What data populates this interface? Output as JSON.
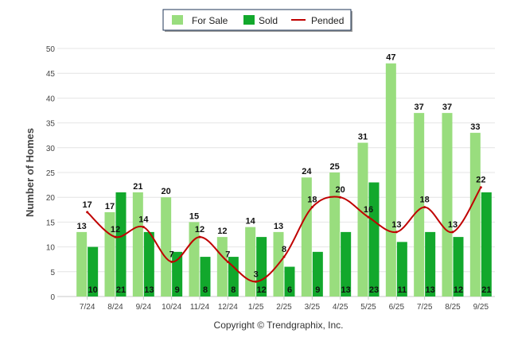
{
  "chart_data": {
    "type": "bar",
    "title": "",
    "xlabel": "",
    "ylabel": "Number of Homes",
    "ylim": [
      0,
      50
    ],
    "yticks": [
      0,
      5,
      10,
      15,
      20,
      25,
      30,
      35,
      40,
      45,
      50
    ],
    "grid": true,
    "legend_position": "top-center",
    "categories": [
      "7/24",
      "8/24",
      "9/24",
      "10/24",
      "11/24",
      "12/24",
      "1/25",
      "2/25",
      "3/25",
      "4/25",
      "5/25",
      "6/25",
      "7/25",
      "8/25",
      "9/25"
    ],
    "series": [
      {
        "name": "For Sale",
        "kind": "bar",
        "color": "#99dd7e",
        "values": [
          13,
          17,
          21,
          20,
          15,
          12,
          14,
          13,
          24,
          25,
          31,
          47,
          37,
          37,
          33
        ]
      },
      {
        "name": "Sold",
        "kind": "bar",
        "color": "#12a82c",
        "values": [
          10,
          21,
          13,
          9,
          8,
          8,
          12,
          6,
          9,
          13,
          23,
          11,
          13,
          12,
          21
        ]
      },
      {
        "name": "Pended",
        "kind": "line",
        "color": "#c00000",
        "values": [
          17,
          12,
          14,
          7,
          12,
          7,
          3,
          8,
          18,
          20,
          16,
          13,
          18,
          13,
          22
        ]
      }
    ]
  },
  "footer": {
    "copyright": "Copyright © Trendgraphix, Inc."
  }
}
